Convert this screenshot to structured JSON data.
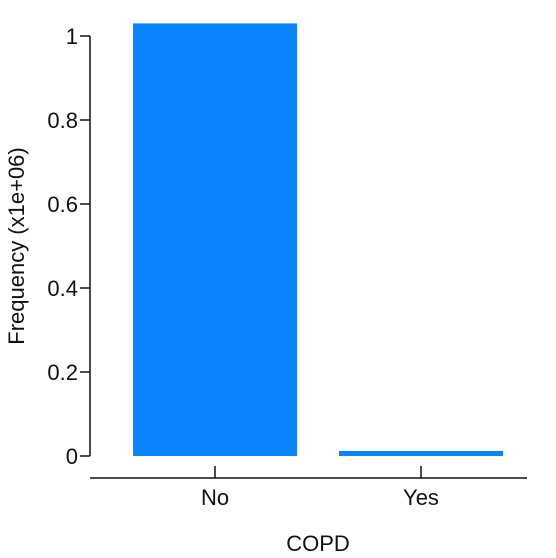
{
  "chart_data": {
    "type": "bar",
    "categories": [
      "No",
      "Yes"
    ],
    "values": [
      1.03,
      0.012
    ],
    "xlabel": "COPD",
    "ylabel": "Frequency (x1e+06)",
    "ylim": [
      0,
      1
    ],
    "yticks": [
      0,
      0.2,
      0.4,
      0.6,
      0.8,
      1
    ],
    "ytick_labels": [
      "0",
      "0.2",
      "0.4",
      "0.6",
      "0.8",
      "1"
    ],
    "grid": false,
    "legend": "none",
    "bar_color": "#0a84ff"
  }
}
